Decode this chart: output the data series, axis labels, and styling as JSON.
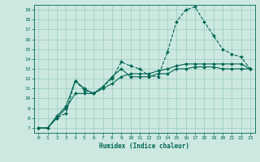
{
  "title": "",
  "xlabel": "Humidex (Indice chaleur)",
  "background_color": "#cce8e0",
  "grid_color": "#99ccbb",
  "line_color": "#006655",
  "spine_color": "#006655",
  "xlim": [
    -0.5,
    23.5
  ],
  "ylim": [
    6.5,
    19.5
  ],
  "xticks": [
    0,
    1,
    2,
    3,
    4,
    5,
    6,
    7,
    8,
    9,
    10,
    11,
    12,
    13,
    14,
    15,
    16,
    17,
    18,
    19,
    20,
    21,
    22,
    23
  ],
  "yticks": [
    7,
    8,
    9,
    10,
    11,
    12,
    13,
    14,
    15,
    16,
    17,
    18,
    19
  ],
  "line1_x": [
    0,
    1,
    2,
    3,
    4,
    5,
    6,
    7,
    8,
    9,
    10,
    11,
    12,
    13,
    14,
    15,
    16,
    17,
    18,
    19,
    20,
    21,
    22,
    23
  ],
  "line1_y": [
    7,
    7,
    8,
    8.5,
    11.8,
    10.8,
    10.5,
    11.2,
    12.0,
    13.7,
    13.3,
    13.0,
    12.3,
    12.2,
    14.7,
    17.8,
    19.0,
    19.3,
    17.8,
    16.4,
    15.0,
    14.5,
    14.2,
    13.0
  ],
  "line2_x": [
    0,
    1,
    2,
    3,
    4,
    5,
    6,
    7,
    8,
    9,
    10,
    11,
    12,
    13,
    14,
    15,
    16,
    17,
    18,
    19,
    20,
    21,
    22,
    23
  ],
  "line2_y": [
    7,
    7,
    8.2,
    9.2,
    11.8,
    11.0,
    10.5,
    11.2,
    12.2,
    13.0,
    12.2,
    12.2,
    12.2,
    12.5,
    12.5,
    13.0,
    13.0,
    13.2,
    13.2,
    13.2,
    13.0,
    13.0,
    13.0,
    13.0
  ],
  "line3_x": [
    0,
    1,
    2,
    3,
    4,
    5,
    6,
    7,
    8,
    9,
    10,
    11,
    12,
    13,
    14,
    15,
    16,
    17,
    18,
    19,
    20,
    21,
    22,
    23
  ],
  "line3_y": [
    7,
    7,
    8,
    9,
    10.5,
    10.5,
    10.5,
    11.0,
    11.5,
    12.2,
    12.5,
    12.5,
    12.5,
    12.8,
    13.0,
    13.3,
    13.5,
    13.5,
    13.5,
    13.5,
    13.5,
    13.5,
    13.5,
    13.0
  ],
  "xlabel_fontsize": 5.5,
  "tick_fontsize": 4.5,
  "marker_size": 2.0,
  "linewidth": 0.8
}
